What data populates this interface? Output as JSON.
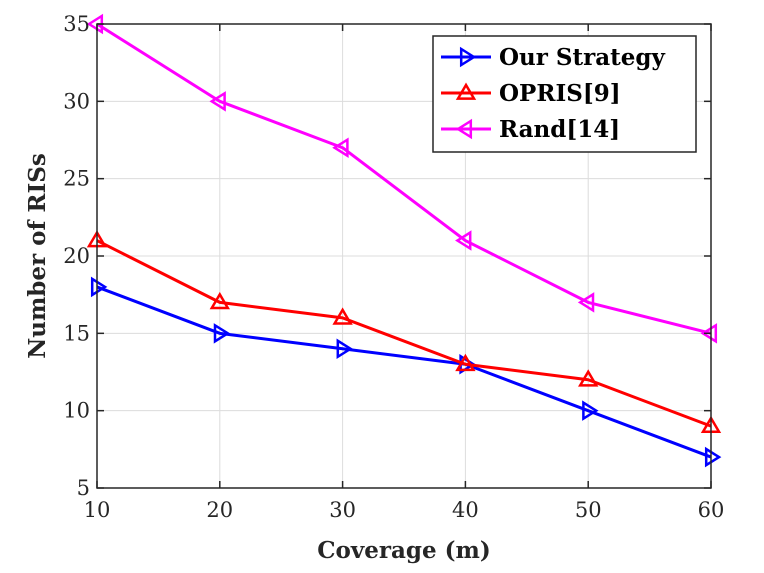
{
  "chart_data": {
    "type": "line",
    "title": "",
    "xlabel": "Coverage (m)",
    "ylabel": "Number of RISs",
    "x": [
      10,
      20,
      30,
      40,
      50,
      60
    ],
    "xlim": [
      10,
      60
    ],
    "ylim": [
      5,
      35
    ],
    "xticks": [
      10,
      20,
      30,
      40,
      50,
      60
    ],
    "yticks": [
      5,
      10,
      15,
      20,
      25,
      30,
      35
    ],
    "grid": true,
    "legend_position": "top-right",
    "series": [
      {
        "name": "Our Strategy",
        "color": "#0000ff",
        "marker": "triangle-right",
        "values": [
          18,
          15,
          14,
          13,
          10,
          7
        ]
      },
      {
        "name": "OPRIS[9]",
        "color": "#ff0000",
        "marker": "triangle-up",
        "values": [
          21,
          17,
          16,
          13,
          12,
          9
        ]
      },
      {
        "name": "Rand[14]",
        "color": "#ff00ff",
        "marker": "triangle-left",
        "values": [
          35,
          30,
          27,
          21,
          17,
          15
        ]
      }
    ]
  }
}
